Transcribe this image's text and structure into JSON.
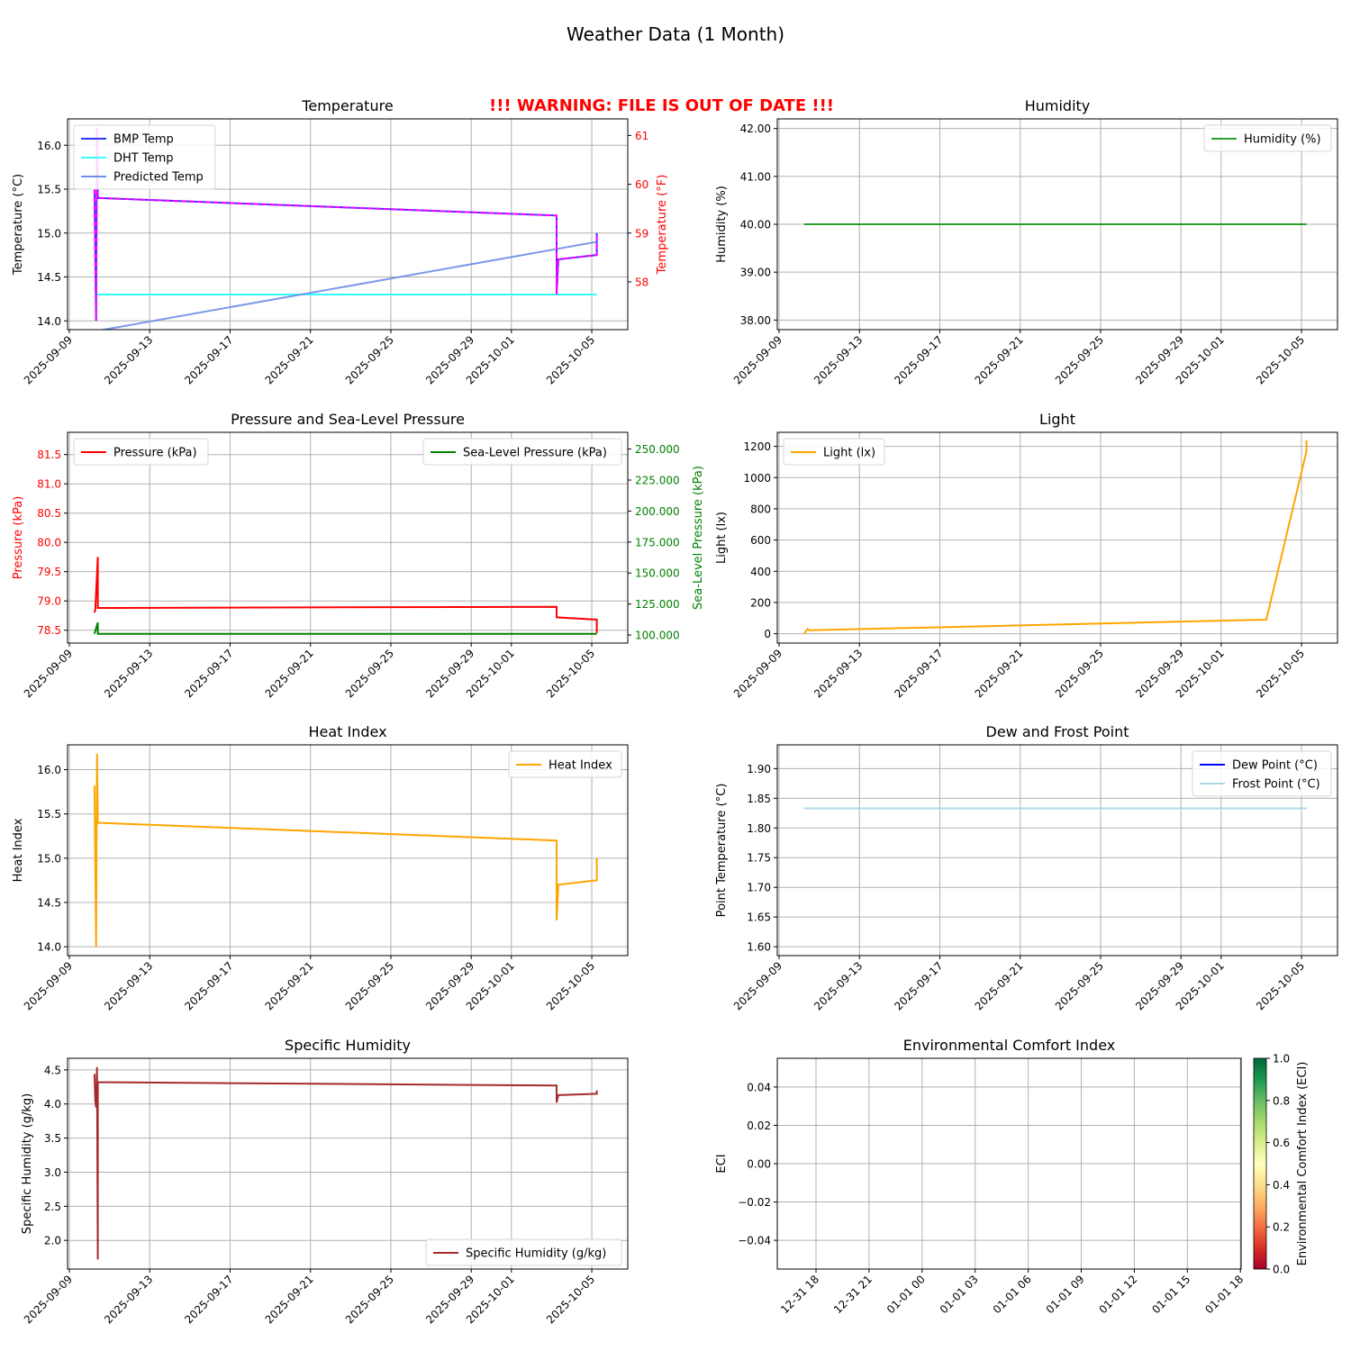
{
  "figure": {
    "title": "Weather Data (1 Month)",
    "warning": "!!! WARNING: FILE IS OUT OF DATE !!!",
    "warning_color": "#ff0000"
  },
  "x_date_ticks": [
    "2025-09-09",
    "2025-09-13",
    "2025-09-17",
    "2025-09-21",
    "2025-09-25",
    "2025-09-29",
    "2025-10-01",
    "2025-10-05"
  ],
  "chart_data": [
    {
      "id": "temperature",
      "type": "line",
      "title": "Temperature",
      "xlabel": "",
      "ylabel": "Temperature (°C)",
      "ylabel_right": "Temperature (°F)",
      "ylabel_right_color": "#ff0000",
      "ylim": [
        13.9,
        16.3
      ],
      "yticks": [
        "14.0",
        "14.5",
        "15.0",
        "15.5",
        "16.0"
      ],
      "ylim_right": [
        57.02,
        61.34
      ],
      "yticks_right": [
        "58",
        "59",
        "60",
        "61"
      ],
      "legend_position": "upper left",
      "grid": true,
      "series": [
        {
          "name": "BMP Temp",
          "color": "#3333ff",
          "x": [
            "2025-09-10T06",
            "2025-09-10T08",
            "2025-09-10T09",
            "2025-09-10T10",
            "2025-10-03T06",
            "2025-10-03T06",
            "2025-10-03T08",
            "2025-10-05T06",
            "2025-10-05T06"
          ],
          "values": [
            15.5,
            14.0,
            16.2,
            15.4,
            15.2,
            14.3,
            14.7,
            14.75,
            15.0
          ]
        },
        {
          "name": "DHT Temp",
          "color": "#33ffff",
          "x": [
            "2025-09-10T06",
            "2025-10-05T06"
          ],
          "values": [
            14.3,
            14.3
          ]
        },
        {
          "name": "Predicted Temp",
          "color": "#6f8de6",
          "x": [
            "2025-09-10T06",
            "2025-10-05T06"
          ],
          "values": [
            13.88,
            14.9
          ]
        },
        {
          "name": "Temperature (°F)",
          "color": "#ff00ff",
          "x": [
            "2025-09-10T06",
            "2025-09-10T08",
            "2025-09-10T09",
            "2025-09-10T10",
            "2025-10-03T06",
            "2025-10-03T06",
            "2025-10-03T08",
            "2025-10-05T06",
            "2025-10-05T06"
          ],
          "values": [
            59.9,
            57.2,
            61.16,
            59.72,
            59.36,
            57.74,
            58.46,
            58.55,
            59.0
          ]
        }
      ]
    },
    {
      "id": "humidity",
      "type": "line",
      "title": "Humidity",
      "xlabel": "",
      "ylabel": "Humidity (%)",
      "ylim": [
        37.8,
        42.2
      ],
      "yticks": [
        "38.00",
        "39.00",
        "40.00",
        "41.00",
        "42.00"
      ],
      "legend_position": "upper right",
      "grid": true,
      "series": [
        {
          "name": "Humidity (%)",
          "color": "#2ca02c",
          "x": [
            "2025-09-10T06",
            "2025-10-05T06"
          ],
          "values": [
            40.0,
            40.0
          ]
        }
      ]
    },
    {
      "id": "pressure",
      "type": "line",
      "title": "Pressure and Sea-Level Pressure",
      "xlabel": "",
      "ylabel": "Pressure (kPa)",
      "ylabel_color": "#ff0000",
      "ylabel_right": "Sea-Level Pressure (kPa)",
      "ylabel_right_color": "#008000",
      "ylim": [
        78.28,
        81.88
      ],
      "yticks": [
        "78.5",
        "79.0",
        "79.5",
        "80.0",
        "80.5",
        "81.0",
        "81.5"
      ],
      "ylim_right": [
        93.5,
        263.5
      ],
      "yticks_right": [
        "100.000",
        "125.000",
        "150.000",
        "175.000",
        "200.000",
        "225.000",
        "250.000"
      ],
      "legend_position": "upper left / upper right",
      "grid": true,
      "series": [
        {
          "name": "Pressure (kPa)",
          "color": "#ff0000",
          "x": [
            "2025-09-10T06",
            "2025-09-10T07",
            "2025-09-10T10",
            "2025-09-10T10",
            "2025-09-10T10",
            "2025-10-03T06",
            "2025-10-03T06",
            "2025-10-05T06",
            "2025-10-05T06"
          ],
          "values": [
            78.8,
            78.85,
            79.75,
            78.88,
            78.88,
            78.9,
            78.72,
            78.68,
            78.45
          ]
        },
        {
          "name": "Sea-Level Pressure (kPa)",
          "color": "#008000",
          "x": [
            "2025-09-10T06",
            "2025-09-10T10",
            "2025-09-10T10",
            "2025-10-05T06"
          ],
          "values": [
            101.0,
            110.0,
            101.0,
            101.0
          ]
        }
      ]
    },
    {
      "id": "light",
      "type": "line",
      "title": "Light",
      "xlabel": "",
      "ylabel": "Light (lx)",
      "ylim": [
        -60,
        1290
      ],
      "yticks": [
        "0",
        "200",
        "400",
        "600",
        "800",
        "1000",
        "1200"
      ],
      "legend_position": "upper left",
      "grid": true,
      "series": [
        {
          "name": "Light (lx)",
          "color": "#ffa500",
          "x": [
            "2025-09-10T06",
            "2025-09-10T10",
            "2025-09-10T12",
            "2025-10-03T06",
            "2025-10-05T06",
            "2025-10-05T06"
          ],
          "values": [
            0,
            30,
            22,
            90,
            1170,
            1240
          ]
        }
      ]
    },
    {
      "id": "heat_index",
      "type": "line",
      "title": "Heat Index",
      "xlabel": "",
      "ylabel": "Heat Index",
      "ylim": [
        13.9,
        16.28
      ],
      "yticks": [
        "14.0",
        "14.5",
        "15.0",
        "15.5",
        "16.0"
      ],
      "legend_position": "upper right",
      "grid": true,
      "series": [
        {
          "name": "Heat Index",
          "color": "#ffa500",
          "x": [
            "2025-09-10T06",
            "2025-09-10T08",
            "2025-09-10T09",
            "2025-09-10T10",
            "2025-10-03T06",
            "2025-10-03T06",
            "2025-10-03T08",
            "2025-10-05T06",
            "2025-10-05T06"
          ],
          "values": [
            15.82,
            14.0,
            16.18,
            15.4,
            15.2,
            14.3,
            14.7,
            14.75,
            15.0
          ]
        }
      ]
    },
    {
      "id": "dew_frost",
      "type": "line",
      "title": "Dew and Frost Point",
      "xlabel": "",
      "ylabel": "Point Temperature (°C)",
      "ylim": [
        1.585,
        1.94
      ],
      "yticks": [
        "1.60",
        "1.65",
        "1.70",
        "1.75",
        "1.80",
        "1.85",
        "1.90"
      ],
      "legend_position": "upper right",
      "grid": true,
      "series": [
        {
          "name": "Dew Point (°C)",
          "color": "#0000ff",
          "x": [
            "2025-09-10T06",
            "2025-10-05T06"
          ],
          "values": [
            1.833,
            1.833
          ]
        },
        {
          "name": "Frost Point (°C)",
          "color": "#add8e6",
          "x": [
            "2025-09-10T06",
            "2025-10-05T06"
          ],
          "values": [
            1.833,
            1.833
          ]
        }
      ]
    },
    {
      "id": "specific_humidity",
      "type": "line",
      "title": "Specific Humidity",
      "xlabel": "",
      "ylabel": "Specific Humidity (g/kg)",
      "ylim": [
        1.58,
        4.67
      ],
      "yticks": [
        "2.0",
        "2.5",
        "3.0",
        "3.5",
        "4.0",
        "4.5"
      ],
      "legend_position": "lower right",
      "grid": true,
      "series": [
        {
          "name": "Specific Humidity (g/kg)",
          "color": "#a52a2a",
          "x": [
            "2025-09-10T06",
            "2025-09-10T07",
            "2025-09-10T08",
            "2025-09-10T09",
            "2025-09-10T10",
            "2025-09-10T10",
            "2025-10-03T06",
            "2025-10-03T06",
            "2025-10-03T08",
            "2025-10-05T06",
            "2025-10-05T06"
          ],
          "values": [
            4.44,
            4.05,
            3.95,
            4.54,
            1.72,
            4.32,
            4.27,
            4.02,
            4.13,
            4.15,
            4.2
          ]
        }
      ]
    },
    {
      "id": "eci",
      "type": "scatter",
      "title": "Environmental Comfort Index",
      "xlabel": "",
      "ylabel": "ECI",
      "ylim": [
        -0.055,
        0.055
      ],
      "yticks": [
        "−0.04",
        "−0.02",
        "0.00",
        "0.02",
        "0.04"
      ],
      "xticks": [
        "12-31 18",
        "12-31 21",
        "01-01 00",
        "01-01 03",
        "01-01 06",
        "01-01 09",
        "01-01 12",
        "01-01 15",
        "01-01 18"
      ],
      "colorbar": {
        "label": "Environmental Comfort Index (ECI)",
        "cmap": "RdYlGn",
        "range": [
          0.0,
          1.0
        ],
        "ticks": [
          "0.0",
          "0.2",
          "0.4",
          "0.6",
          "0.8",
          "1.0"
        ]
      },
      "grid": true,
      "series": []
    }
  ]
}
